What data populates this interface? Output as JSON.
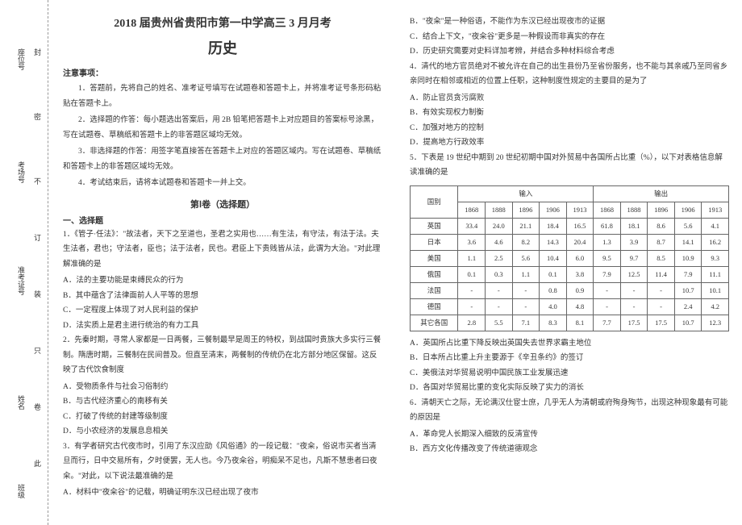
{
  "margin": {
    "labels": [
      "封",
      "密",
      "不",
      "订",
      "装",
      "只",
      "卷",
      "此"
    ],
    "fields": [
      "座位号",
      "考场号",
      "准考证号",
      "姓名",
      "班级"
    ]
  },
  "header": {
    "title": "2018 届贵州省贵阳市第一中学高三 3 月月考",
    "subject": "历史"
  },
  "notice": {
    "heading": "注意事项：",
    "items": [
      "1．答题前，先将自己的姓名、准考证号填写在试题卷和答题卡上，并将准考证号条形码粘贴在答题卡上。",
      "2．选择题的作答：每小题选出答案后，用 2B 铅笔把答题卡上对应题目的答案标号涂黑，写在试题卷、草稿纸和答题卡上的非答题区域均无效。",
      "3．非选择题的作答：用签字笔直接答在答题卡上对应的答题区域内。写在试题卷、草稿纸和答题卡上的非答题区域均无效。",
      "4．考试结束后，请将本试题卷和答题卡一并上交。"
    ]
  },
  "section1": {
    "title": "第Ⅰ卷（选择题）",
    "subheading": "一、选择题"
  },
  "q1": {
    "stem": "1．《管子·任法》：\"故法者，天下之至道也，圣君之实用也……有生法，有守法，有法于法。夫生法者，君也；守法者，臣也；法于法者，民也。君臣上下贵贱皆从法，此谓为大治。\"对此理解准确的是",
    "opts": {
      "A": "A．法的主要功能是束缚民众的行为",
      "B": "B．其中蕴含了法律面前人人平等的思想",
      "C": "C．一定程度上体现了对人民利益的保护",
      "D": "D．法实质上是君主进行统治的有力工具"
    }
  },
  "q2": {
    "stem": "2．先秦时期，寻常人家都是一日两餐，三餐制最早是周王的特权，到战国时贵族大多实行三餐制。隋唐时期，三餐制在民间普及。但直至清末，两餐制的传统仍在北方部分地区保留。这反映了古代饮食制度",
    "opts": {
      "A": "A．受物质条件与社会习俗制约",
      "B": "B．与古代经济重心的南移有关",
      "C": "C．打破了传统的封建等级制度",
      "D": "D．与小农经济的发展息息相关"
    }
  },
  "q3": {
    "stem": "3．有学者研究古代夜市时，引用了东汉应劭《风俗通》的一段记载：\"夜籴，俗说市买者当清旦而行，日中交易所有，夕时便罢，无人也。今乃夜籴谷，明痴呆不足也，凡斯不慧患者曰夜籴。\"对此，以下说法最准确的是",
    "opts": {
      "A": "A．材料中\"夜籴谷\"的记载，明确证明东汉已经出现了夜市"
    }
  },
  "col2": {
    "q3opts": {
      "B": "B．\"夜籴\"是一种俗语，不能作为东汉已经出现夜市的证据",
      "C": "C．结合上下文，\"夜籴谷\"更多是一种假设而非真实的存在",
      "D": "D．历史研究需要对史料详加考辨，并结合多种材料综合考虑"
    },
    "q4": {
      "stem": "4．清代的地方官员绝对不被允许在自己的出生县份乃至省份服务，也不能与其亲戚乃至同省乡亲同时在相邻或相近的位置上任职，这种制度性规定的主要目的是为了",
      "opts": {
        "A": "A．防止官员贪污腐败",
        "B": "B．有效实现权力制衡",
        "C": "C．加强对地方的控制",
        "D": "D．提高地方行政效率"
      }
    },
    "q5": {
      "stem": "5．下表是 19 世纪中期到 20 世纪初期中国对外贸易中各国所占比重（%），以下对表格信息解读准确的是"
    },
    "table": {
      "head_country": "国别",
      "head_in": "输入",
      "head_out": "输出",
      "years": [
        "1868",
        "1888",
        "1896",
        "1906",
        "1913",
        "1868",
        "1888",
        "1896",
        "1906",
        "1913"
      ],
      "rows": [
        {
          "c": "英国",
          "v": [
            "33.4",
            "24.0",
            "21.1",
            "18.4",
            "16.5",
            "61.8",
            "18.1",
            "8.6",
            "5.6",
            "4.1"
          ]
        },
        {
          "c": "日本",
          "v": [
            "3.6",
            "4.6",
            "8.2",
            "14.3",
            "20.4",
            "1.3",
            "3.9",
            "8.7",
            "14.1",
            "16.2"
          ]
        },
        {
          "c": "美国",
          "v": [
            "1.1",
            "2.5",
            "5.6",
            "10.4",
            "6.0",
            "9.5",
            "9.7",
            "8.5",
            "10.9",
            "9.3"
          ]
        },
        {
          "c": "俄国",
          "v": [
            "0.1",
            "0.3",
            "1.1",
            "0.1",
            "3.8",
            "7.9",
            "12.5",
            "11.4",
            "7.9",
            "11.1"
          ]
        },
        {
          "c": "法国",
          "v": [
            "-",
            "-",
            "-",
            "0.8",
            "0.9",
            "-",
            "-",
            "-",
            "10.7",
            "10.1"
          ]
        },
        {
          "c": "德国",
          "v": [
            "-",
            "-",
            "-",
            "4.0",
            "4.8",
            "-",
            "-",
            "-",
            "2.4",
            "4.2"
          ]
        },
        {
          "c": "其它各国",
          "v": [
            "2.8",
            "5.5",
            "7.1",
            "8.3",
            "8.1",
            "7.7",
            "17.5",
            "17.5",
            "10.7",
            "12.3"
          ]
        }
      ]
    },
    "q5opts": {
      "A": "A．英国所占比重下降反映出英国失去世界求霸主地位",
      "B": "B．日本所占比重上升主要源于《辛丑条约》的签订",
      "C": "C．美俄法对华贸易说明中国民族工业发展迅速",
      "D": "D．各国对华贸易比重的变化实际反映了实力的消长"
    },
    "q6": {
      "stem": "6．清朝天亡之际，无论满汉仕宦士庶，几乎无人为清朝或府殉身殉节，出现这种现象最有可能的原因是",
      "opts": {
        "A": "A．革命党人长期深入细致的反清宣传",
        "B": "B．西方文化传播改变了传统道德观念"
      }
    }
  }
}
